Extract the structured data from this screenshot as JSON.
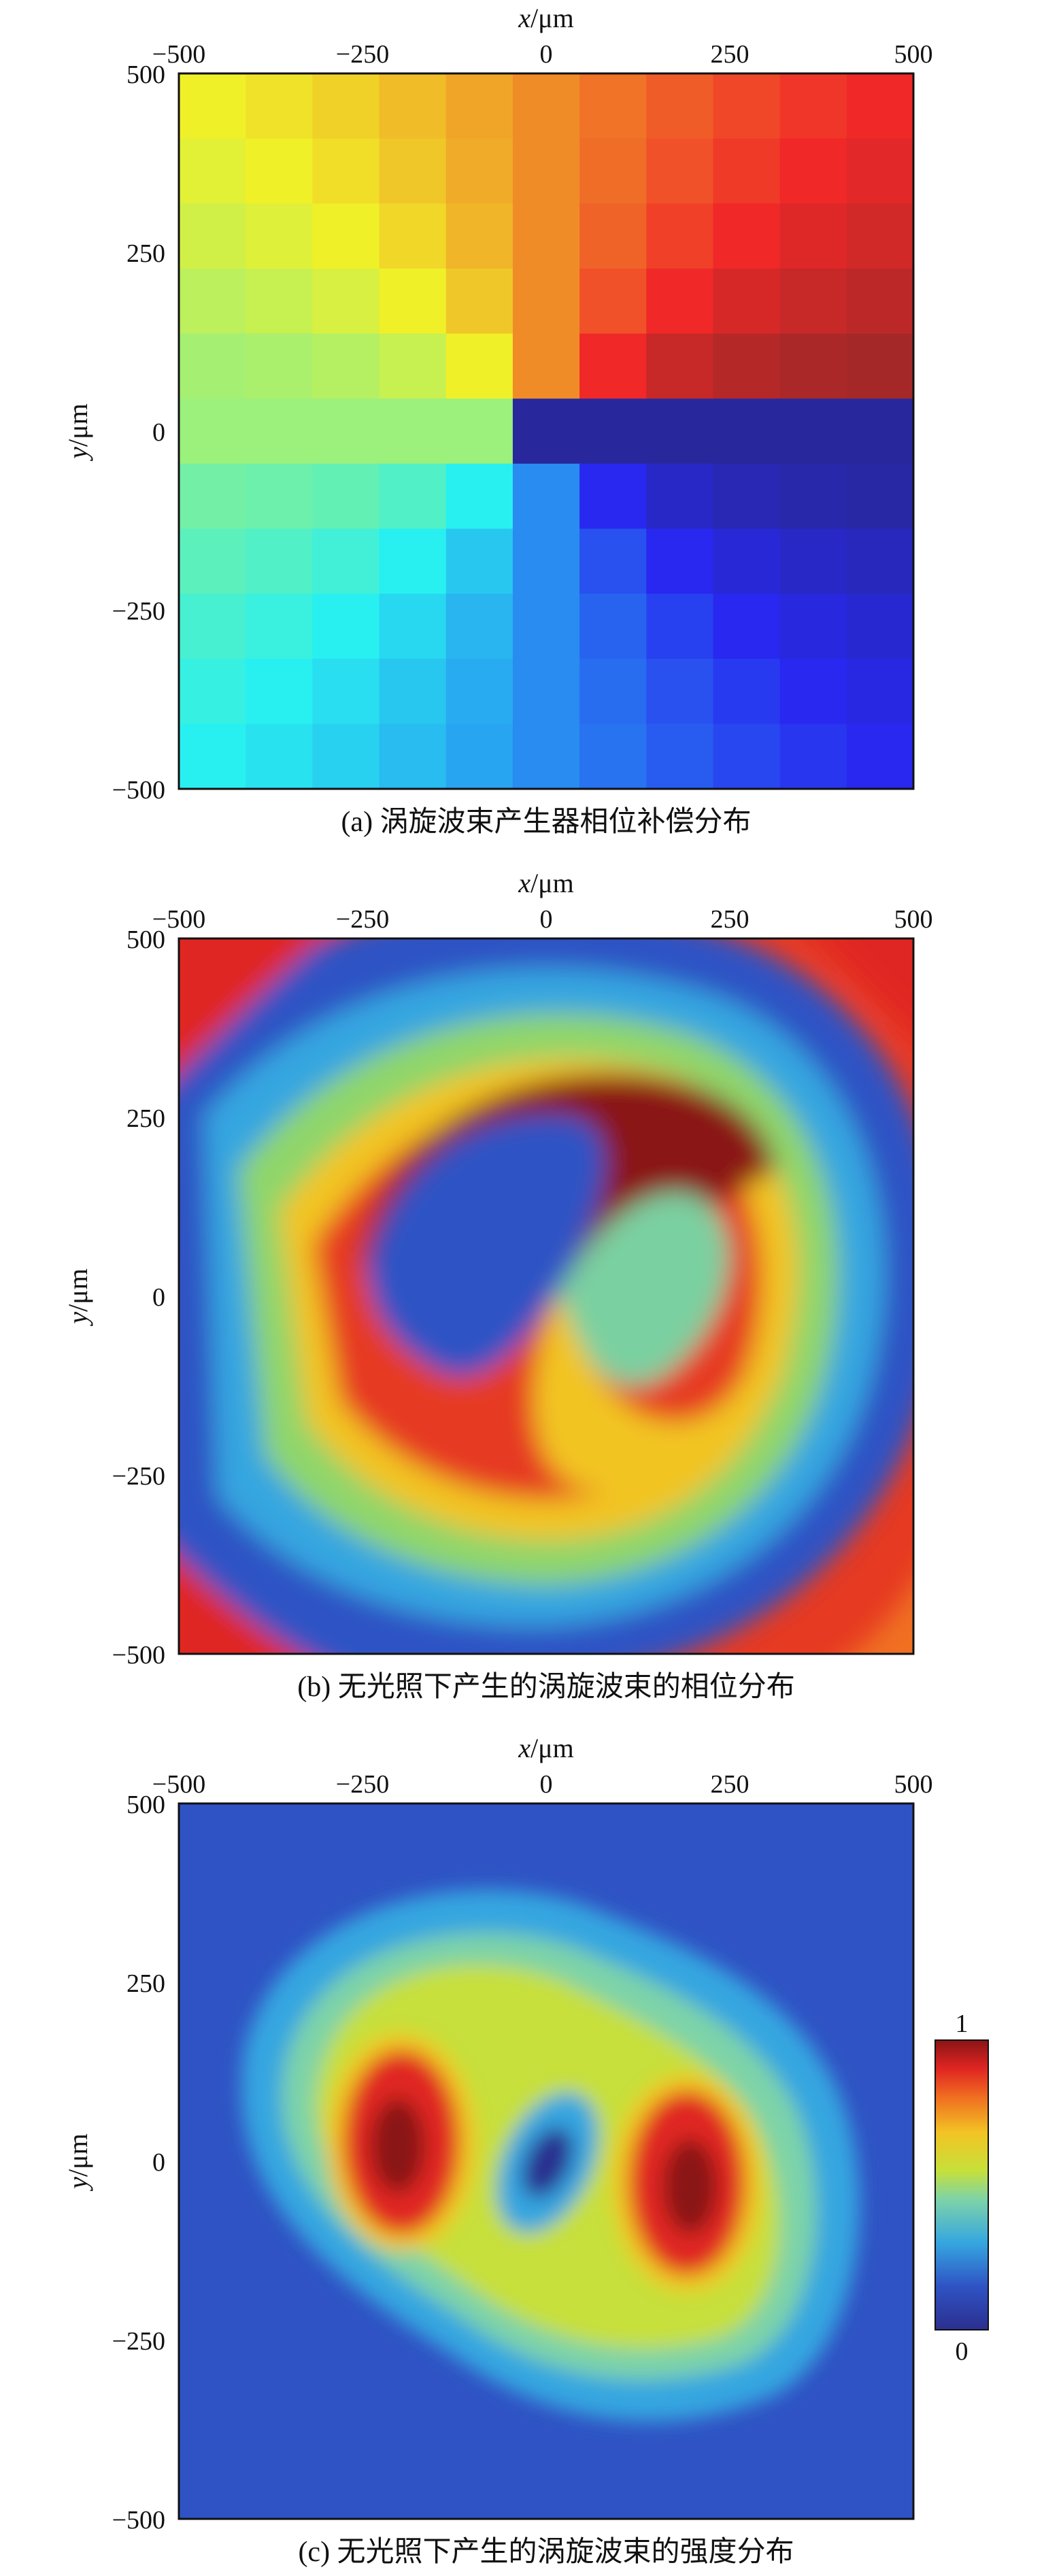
{
  "chart_data": [
    {
      "type": "heatmap",
      "caption": "(a) 涡旋波束产生器相位补偿分布",
      "xlabel": "x/μm",
      "ylabel": "y/μm",
      "xlim": [
        -500,
        500
      ],
      "ylim": [
        -500,
        500
      ],
      "xticks": [
        "−500",
        "−250",
        "0",
        "250",
        "500"
      ],
      "yticks": [
        "500",
        "250",
        "0",
        "−250",
        "−500"
      ],
      "grid": "11x11 discrete phase cells",
      "colormap": "jet",
      "quadrants": {
        "top_left": "yellow/orange",
        "top_right": "red to dark red",
        "middle_row_left": "green",
        "middle_row_right": "dark navy",
        "bottom_left": "green to cyan",
        "bottom_right": "blue"
      }
    },
    {
      "type": "heatmap",
      "caption": "(b) 无光照下产生的涡旋波束的相位分布",
      "xlabel": "x/μm",
      "ylabel": "y/μm",
      "xlim": [
        -500,
        500
      ],
      "ylim": [
        -500,
        500
      ],
      "xticks": [
        "−500",
        "−250",
        "0",
        "250",
        "500"
      ],
      "yticks": [
        "500",
        "250",
        "0",
        "−250",
        "−500"
      ],
      "pattern": "single-arm phase spiral centered at origin",
      "colormap": "jet"
    },
    {
      "type": "heatmap",
      "caption": "(c) 无光照下产生的涡旋波束的强度分布",
      "xlabel": "x/μm",
      "ylabel": "y/μm",
      "xlim": [
        -500,
        500
      ],
      "ylim": [
        -500,
        500
      ],
      "xticks": [
        "−500",
        "−250",
        "0",
        "250",
        "500"
      ],
      "yticks": [
        "500",
        "250",
        "0",
        "−250",
        "−500"
      ],
      "pattern": "doughnut intensity with null at center and two lobes",
      "colormap": "jet",
      "colorbar": {
        "max_label": "1",
        "min_label": "0",
        "range": [
          0,
          1
        ]
      }
    }
  ]
}
